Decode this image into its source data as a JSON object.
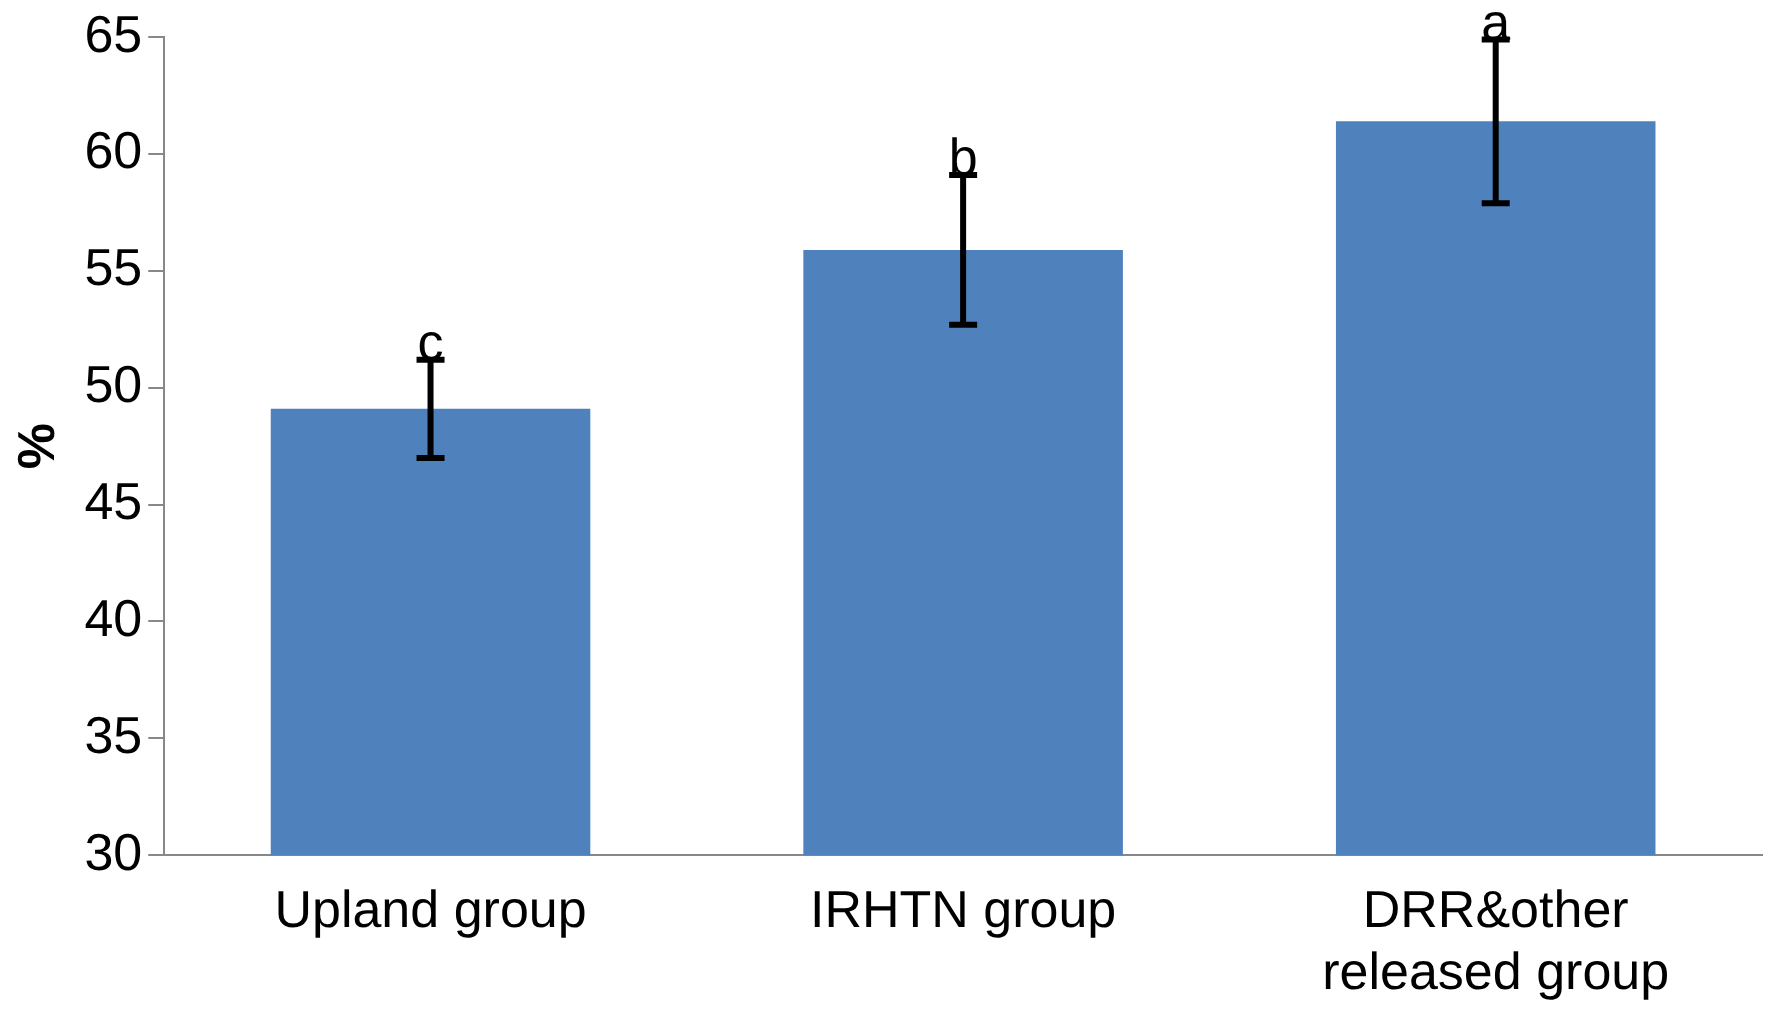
{
  "chart_data": {
    "type": "bar",
    "ylabel": "%",
    "categories": [
      "Upland group",
      "IRHTN group",
      "DRR&other released group"
    ],
    "values": [
      49.1,
      55.9,
      61.4
    ],
    "errors": [
      2.1,
      3.2,
      3.5
    ],
    "color": "#4f81bd",
    "ylim": [
      30,
      65
    ],
    "yticks": [
      30,
      35,
      40,
      45,
      50,
      55,
      60,
      65
    ],
    "grid": false,
    "legend": false,
    "annotations": [
      {
        "text": "c",
        "x": "Upland group",
        "y": 51.2
      },
      {
        "text": "b",
        "x": "IRHTN group",
        "y": 59.1
      },
      {
        "text": "a",
        "x": "DRR&other released group",
        "y": 64.9
      }
    ]
  }
}
